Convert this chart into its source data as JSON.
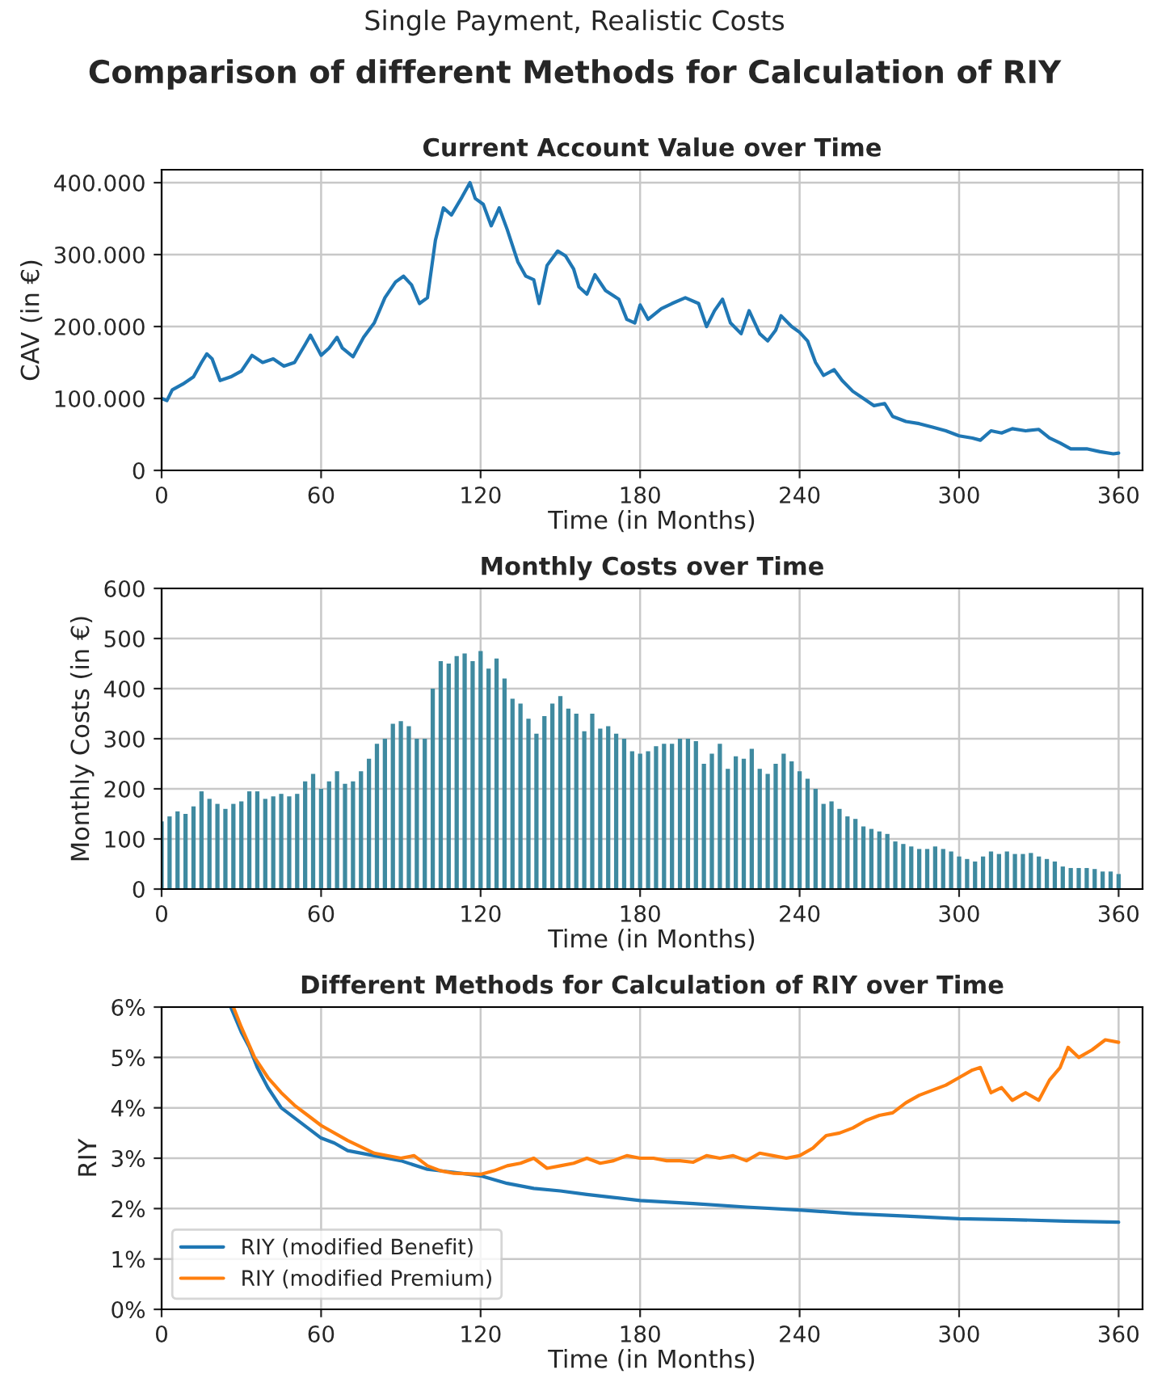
{
  "chart_data": [
    {
      "type": "other",
      "subtitle": "Single Payment, Realistic Costs",
      "title": "Comparison of different Methods for Calculation of RIY"
    },
    {
      "type": "line",
      "title": "Current Account Value over Time",
      "xlabel": "Time (in Months)",
      "ylabel": "CAV (in €)",
      "xlim": [
        0,
        369
      ],
      "xticks": [
        0,
        60,
        120,
        180,
        240,
        300,
        360
      ],
      "ylim": [
        0,
        418000
      ],
      "yticks": [
        {
          "value": 0,
          "label": "0"
        },
        {
          "value": 100000,
          "label": "100.000"
        },
        {
          "value": 200000,
          "label": "200.000"
        },
        {
          "value": 300000,
          "label": "300.000"
        },
        {
          "value": 400000,
          "label": "400.000"
        }
      ],
      "grid": true,
      "series": [
        {
          "color": "#1f77b4",
          "x": [
            0,
            2,
            4,
            8,
            12,
            15,
            17,
            19,
            22,
            26,
            30,
            34,
            38,
            42,
            46,
            50,
            54,
            56,
            60,
            63,
            66,
            68,
            72,
            76,
            80,
            84,
            88,
            91,
            94,
            97,
            100,
            103,
            106,
            109,
            113,
            116,
            118,
            121,
            124,
            127,
            130,
            134,
            137,
            140,
            142,
            145,
            149,
            152,
            155,
            157,
            160,
            163,
            167,
            172,
            175,
            178,
            180,
            183,
            188,
            192,
            197,
            202,
            205,
            208,
            211,
            214,
            218,
            221,
            225,
            228,
            231,
            233,
            237,
            240,
            243,
            246,
            249,
            253,
            256,
            260,
            264,
            268,
            272,
            275,
            280,
            285,
            290,
            295,
            300,
            305,
            308,
            312,
            316,
            320,
            325,
            330,
            334,
            338,
            342,
            348,
            353,
            358,
            360
          ],
          "values": [
            100000,
            97000,
            112000,
            120000,
            130000,
            150000,
            162000,
            155000,
            125000,
            130000,
            138000,
            160000,
            150000,
            155000,
            145000,
            150000,
            175000,
            188000,
            160000,
            170000,
            185000,
            170000,
            158000,
            185000,
            205000,
            240000,
            262000,
            270000,
            258000,
            232000,
            240000,
            320000,
            365000,
            355000,
            380000,
            400000,
            378000,
            370000,
            340000,
            365000,
            335000,
            290000,
            270000,
            265000,
            232000,
            285000,
            305000,
            298000,
            280000,
            255000,
            245000,
            272000,
            250000,
            238000,
            210000,
            205000,
            230000,
            210000,
            225000,
            232000,
            240000,
            232000,
            200000,
            222000,
            238000,
            205000,
            190000,
            222000,
            190000,
            180000,
            195000,
            215000,
            200000,
            192000,
            180000,
            150000,
            132000,
            140000,
            125000,
            110000,
            100000,
            90000,
            93000,
            75000,
            68000,
            65000,
            60000,
            55000,
            48000,
            45000,
            42000,
            55000,
            52000,
            58000,
            55000,
            57000,
            45000,
            38000,
            30000,
            30000,
            26000,
            23000,
            24000
          ]
        }
      ]
    },
    {
      "type": "bar",
      "title": "Monthly Costs over Time",
      "xlabel": "Time (in Months)",
      "ylabel": "Monthly Costs (in €)",
      "xlim": [
        0,
        369
      ],
      "xticks": [
        0,
        60,
        120,
        180,
        240,
        300,
        360
      ],
      "ylim": [
        0,
        600
      ],
      "yticks": [
        0,
        100,
        200,
        300,
        400,
        500,
        600
      ],
      "grid": true,
      "x": [
        0,
        3,
        6,
        9,
        12,
        15,
        18,
        21,
        24,
        27,
        30,
        33,
        36,
        39,
        42,
        45,
        48,
        51,
        54,
        57,
        60,
        63,
        66,
        69,
        72,
        75,
        78,
        81,
        84,
        87,
        90,
        93,
        96,
        99,
        102,
        105,
        108,
        111,
        114,
        117,
        120,
        123,
        126,
        129,
        132,
        135,
        138,
        141,
        144,
        147,
        150,
        153,
        156,
        159,
        162,
        165,
        168,
        171,
        174,
        177,
        180,
        183,
        186,
        189,
        192,
        195,
        198,
        201,
        204,
        207,
        210,
        213,
        216,
        219,
        222,
        225,
        228,
        231,
        234,
        237,
        240,
        243,
        246,
        249,
        252,
        255,
        258,
        261,
        264,
        267,
        270,
        273,
        276,
        279,
        282,
        285,
        288,
        291,
        294,
        297,
        300,
        303,
        306,
        309,
        312,
        315,
        318,
        321,
        324,
        327,
        330,
        333,
        336,
        339,
        342,
        345,
        348,
        351,
        354,
        357,
        360
      ],
      "series": [
        {
          "color": "#3f8aa0",
          "values": [
            135,
            145,
            155,
            150,
            165,
            195,
            180,
            170,
            160,
            170,
            175,
            195,
            195,
            180,
            185,
            190,
            185,
            190,
            215,
            230,
            200,
            215,
            235,
            210,
            215,
            235,
            260,
            290,
            300,
            330,
            335,
            325,
            300,
            300,
            400,
            455,
            450,
            465,
            470,
            455,
            475,
            440,
            460,
            420,
            380,
            370,
            340,
            310,
            345,
            370,
            385,
            360,
            350,
            315,
            350,
            320,
            325,
            310,
            300,
            275,
            270,
            275,
            285,
            290,
            290,
            300,
            300,
            295,
            250,
            270,
            290,
            240,
            265,
            260,
            280,
            240,
            230,
            250,
            270,
            255,
            235,
            220,
            200,
            170,
            175,
            160,
            145,
            140,
            125,
            120,
            115,
            110,
            95,
            90,
            85,
            80,
            80,
            85,
            80,
            75,
            65,
            60,
            55,
            65,
            75,
            70,
            75,
            70,
            70,
            72,
            65,
            60,
            55,
            45,
            42,
            42,
            42,
            40,
            35,
            35,
            30
          ]
        }
      ]
    },
    {
      "type": "line",
      "title": "Different Methods for Calculation of RIY over Time",
      "xlabel": "Time (in Months)",
      "ylabel": "RIY",
      "xlim": [
        0,
        369
      ],
      "xticks": [
        0,
        60,
        120,
        180,
        240,
        300,
        360
      ],
      "ylim": [
        0,
        6
      ],
      "yticks": [
        {
          "value": 0,
          "label": "0%"
        },
        {
          "value": 1,
          "label": "1%"
        },
        {
          "value": 2,
          "label": "2%"
        },
        {
          "value": 3,
          "label": "3%"
        },
        {
          "value": 4,
          "label": "4%"
        },
        {
          "value": 5,
          "label": "5%"
        },
        {
          "value": 6,
          "label": "6%"
        }
      ],
      "grid": true,
      "legend": "bottom left",
      "series": [
        {
          "name": "RIY (modified Benefit)",
          "color": "#1f77b4",
          "x": [
            26,
            30,
            33,
            36,
            40,
            45,
            50,
            55,
            60,
            65,
            70,
            80,
            90,
            100,
            110,
            120,
            130,
            140,
            150,
            160,
            170,
            180,
            200,
            220,
            240,
            260,
            280,
            300,
            320,
            340,
            360
          ],
          "values": [
            6.0,
            5.5,
            5.2,
            4.8,
            4.4,
            4.0,
            3.8,
            3.6,
            3.4,
            3.3,
            3.15,
            3.05,
            2.95,
            2.78,
            2.72,
            2.65,
            2.5,
            2.4,
            2.35,
            2.28,
            2.22,
            2.16,
            2.1,
            2.03,
            1.97,
            1.9,
            1.85,
            1.8,
            1.78,
            1.75,
            1.73
          ]
        },
        {
          "name": "RIY (modified Premium)",
          "color": "#ff7f0e",
          "x": [
            27,
            30,
            35,
            40,
            45,
            50,
            55,
            60,
            70,
            80,
            90,
            95,
            100,
            105,
            110,
            120,
            125,
            130,
            135,
            140,
            145,
            150,
            155,
            160,
            165,
            170,
            175,
            180,
            185,
            190,
            195,
            200,
            205,
            210,
            215,
            220,
            225,
            230,
            235,
            240,
            245,
            250,
            255,
            260,
            265,
            270,
            275,
            280,
            285,
            290,
            295,
            300,
            305,
            308,
            312,
            316,
            320,
            325,
            330,
            334,
            338,
            341,
            345,
            350,
            355,
            360
          ],
          "values": [
            6.0,
            5.6,
            5.0,
            4.6,
            4.3,
            4.05,
            3.85,
            3.65,
            3.35,
            3.1,
            3.0,
            3.05,
            2.85,
            2.75,
            2.7,
            2.68,
            2.75,
            2.85,
            2.9,
            3.0,
            2.8,
            2.85,
            2.9,
            3.0,
            2.9,
            2.95,
            3.05,
            3.0,
            3.0,
            2.95,
            2.95,
            2.92,
            3.05,
            3.0,
            3.05,
            2.95,
            3.1,
            3.05,
            3.0,
            3.05,
            3.2,
            3.45,
            3.5,
            3.6,
            3.75,
            3.85,
            3.9,
            4.1,
            4.25,
            4.35,
            4.45,
            4.6,
            4.75,
            4.8,
            4.3,
            4.4,
            4.15,
            4.3,
            4.15,
            4.55,
            4.8,
            5.2,
            5.0,
            5.15,
            5.35,
            5.3
          ]
        }
      ]
    }
  ]
}
